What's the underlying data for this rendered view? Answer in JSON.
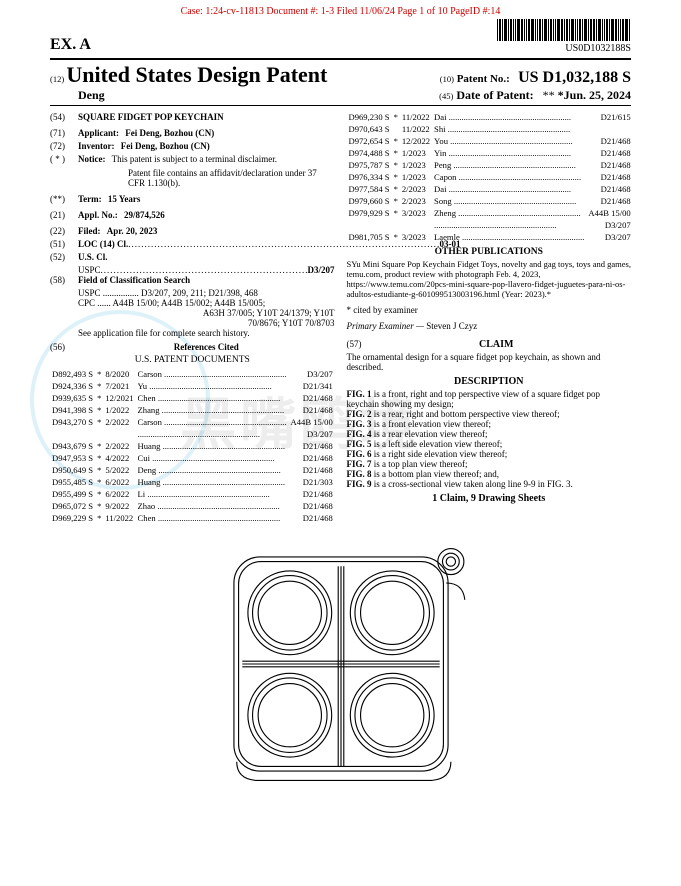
{
  "caseLine": "Case: 1:24-cv-11813 Document #: 1-3 Filed 11/06/24 Page 1 of 10 PageID #:14",
  "exhibit": "EX. A",
  "docNumber": "US0D1032188S",
  "header": {
    "kind": "(12)",
    "title": "United States Design Patent",
    "inventorLine": "Deng",
    "patNoTag": "(10)",
    "patNoLabel": "Patent No.:",
    "patNo": "US D1,032,188 S",
    "dateTag": "(45)",
    "dateLabel": "Date of Patent:",
    "dateStars": "**",
    "dateVal": "*Jun. 25, 2024"
  },
  "left": {
    "54": {
      "tag": "(54)",
      "label": "",
      "body": "SQUARE FIDGET POP KEYCHAIN"
    },
    "71": {
      "tag": "(71)",
      "label": "Applicant:",
      "body": "Fei Deng, Bozhou (CN)"
    },
    "72": {
      "tag": "(72)",
      "label": "Inventor:",
      "body": "Fei Deng, Bozhou (CN)"
    },
    "notice": {
      "tag": "( * )",
      "label": "Notice:",
      "body": "This patent is subject to a terminal disclaimer.",
      "body2": "Patent file contains an affidavit/declaration under 37 CFR 1.130(b)."
    },
    "term": {
      "tag": "(**)",
      "label": "Term:",
      "body": "15 Years"
    },
    "21": {
      "tag": "(21)",
      "label": "Appl. No.:",
      "body": "29/874,526"
    },
    "22": {
      "tag": "(22)",
      "label": "Filed:",
      "body": "Apr. 20, 2023"
    },
    "51": {
      "tag": "(51)",
      "label": "LOC (14) Cl.",
      "val": "03-01"
    },
    "52": {
      "tag": "(52)",
      "label": "U.S. Cl.",
      "line": "USPC",
      "val": "D3/207"
    },
    "58": {
      "tag": "(58)",
      "label": "Field of Classification Search",
      "uspc": "USPC ................ D3/207, 209, 211; D21/398, 468",
      "cpc1": "CPC ...... A44B 15/00; A44B 15/002; A44B 15/005;",
      "cpc2": "A63H 37/005; Y10T 24/1379; Y10T",
      "cpc3": "70/8676; Y10T 70/8703",
      "note": "See application file for complete search history."
    },
    "56": {
      "tag": "(56)",
      "label": "References Cited",
      "sub": "U.S. PATENT DOCUMENTS"
    },
    "refs": [
      {
        "n": "D892,493 S",
        "s": "*",
        "d": "8/2020",
        "a": "Carson",
        "c": "D3/207"
      },
      {
        "n": "D924,336 S",
        "s": "*",
        "d": "7/2021",
        "a": "Yu",
        "c": "D21/341"
      },
      {
        "n": "D939,635 S",
        "s": "*",
        "d": "12/2021",
        "a": "Chen",
        "c": "D21/468"
      },
      {
        "n": "D941,398 S",
        "s": "*",
        "d": "1/2022",
        "a": "Zhang",
        "c": "D21/468"
      },
      {
        "n": "D943,270 S",
        "s": "*",
        "d": "2/2022",
        "a": "Carson",
        "c": "A44B 15/00"
      },
      {
        "n": "",
        "s": "",
        "d": "",
        "a": "",
        "c": "D3/207"
      },
      {
        "n": "D943,679 S",
        "s": "*",
        "d": "2/2022",
        "a": "Huang",
        "c": "D21/468"
      },
      {
        "n": "D947,953 S",
        "s": "*",
        "d": "4/2022",
        "a": "Cui",
        "c": "D21/468"
      },
      {
        "n": "D950,649 S",
        "s": "*",
        "d": "5/2022",
        "a": "Deng",
        "c": "D21/468"
      },
      {
        "n": "D955,485 S",
        "s": "*",
        "d": "6/2022",
        "a": "Huang",
        "c": "D21/303"
      },
      {
        "n": "D955,499 S",
        "s": "*",
        "d": "6/2022",
        "a": "Li",
        "c": "D21/468"
      },
      {
        "n": "D965,072 S",
        "s": "*",
        "d": "9/2022",
        "a": "Zhao",
        "c": "D21/468"
      },
      {
        "n": "D969,229 S",
        "s": "*",
        "d": "11/2022",
        "a": "Chen",
        "c": "D21/468"
      }
    ]
  },
  "right": {
    "refs": [
      {
        "n": "D969,230 S",
        "s": "*",
        "d": "11/2022",
        "a": "Dai",
        "c": "D21/615"
      },
      {
        "n": "D970,643 S",
        "s": "",
        "d": "11/2022",
        "a": "Shi",
        "c": ""
      },
      {
        "n": "D972,654 S",
        "s": "*",
        "d": "12/2022",
        "a": "You",
        "c": "D21/468"
      },
      {
        "n": "D974,488 S",
        "s": "*",
        "d": "1/2023",
        "a": "Yin",
        "c": "D21/468"
      },
      {
        "n": "D975,787 S",
        "s": "*",
        "d": "1/2023",
        "a": "Peng",
        "c": "D21/468"
      },
      {
        "n": "D976,334 S",
        "s": "*",
        "d": "1/2023",
        "a": "Capon",
        "c": "D21/468"
      },
      {
        "n": "D977,584 S",
        "s": "*",
        "d": "2/2023",
        "a": "Dai",
        "c": "D21/468"
      },
      {
        "n": "D979,660 S",
        "s": "*",
        "d": "2/2023",
        "a": "Song",
        "c": "D21/468"
      },
      {
        "n": "D979,929 S",
        "s": "*",
        "d": "3/2023",
        "a": "Zheng",
        "c": "A44B 15/00"
      },
      {
        "n": "",
        "s": "",
        "d": "",
        "a": "",
        "c": "D3/207"
      },
      {
        "n": "D981,705 S",
        "s": "*",
        "d": "3/2023",
        "a": "Laemle",
        "c": "D3/207"
      }
    ],
    "otherPubHdr": "OTHER PUBLICATIONS",
    "otherPub": "SYu Mini Square Pop Keychain Fidget Toys, novelty and gag toys, toys and games, temu.com, product review with photograph Feb. 4, 2023, https://www.temu.com/20pcs-mini-square-pop-llavero-fidget-juguetes-para-ni-os-adultos-estudiante-g-601099513003196.html (Year: 2023).*",
    "cited": "* cited by examiner",
    "examinerLbl": "Primary Examiner —",
    "examiner": "Steven J Czyz",
    "claimTag": "(57)",
    "claimHdr": "CLAIM",
    "claim": "The ornamental design for a square fidget pop keychain, as shown and described.",
    "descHdr": "DESCRIPTION",
    "figs": [
      "FIG. 1 is a front, right and top perspective view of a square fidget pop keychain showing my design;",
      "FIG. 2 is a rear, right and bottom perspective view thereof;",
      "FIG. 3 is a front elevation view thereof;",
      "FIG. 4 is a rear elevation view thereof;",
      "FIG. 5 is a left side elevation view thereof;",
      "FIG. 6 is a right side elevation view thereof;",
      "FIG. 7 is a top plan view thereof;",
      "FIG. 8 is a bottom plan view thereof; and,",
      "FIG. 9 is a cross-sectional view taken along line 9-9 in FIG. 3."
    ],
    "sheets": "1 Claim, 9 Drawing Sheets"
  }
}
